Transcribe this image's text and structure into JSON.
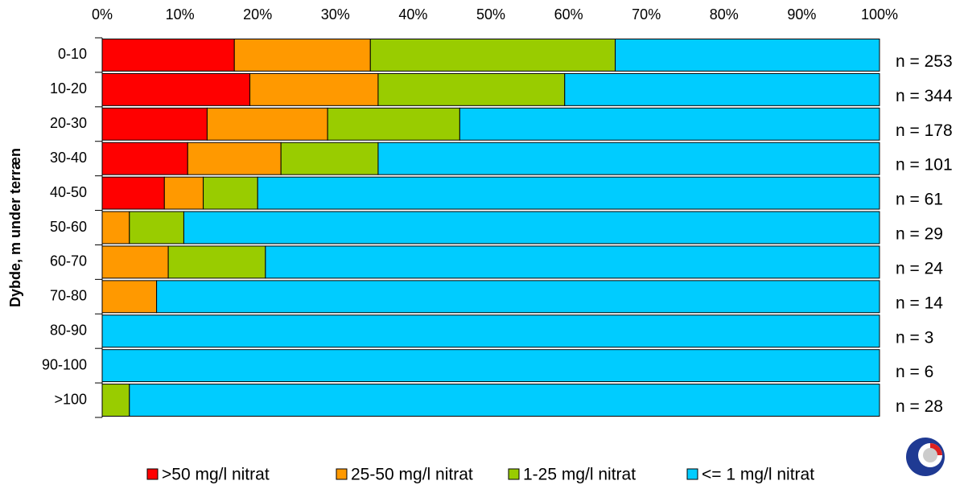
{
  "chart_data": {
    "type": "stacked_bar_horizontal_100",
    "y_axis_label": "Dybde, m under terræn",
    "categories": [
      "0-10",
      "10-20",
      "20-30",
      "30-40",
      "40-50",
      "50-60",
      "60-70",
      "70-80",
      "80-90",
      "90-100",
      ">100"
    ],
    "n_labels": [
      "n = 253",
      "n = 344",
      "n = 178",
      "n = 101",
      "n = 61",
      "n = 29",
      "n = 24",
      "n = 14",
      "n = 3",
      "n = 6",
      "n = 28"
    ],
    "series": [
      {
        "name": ">50 mg/l nitrat",
        "color": "#ff0000",
        "values": [
          17,
          19,
          13.5,
          11,
          8,
          0,
          0,
          0,
          0,
          0,
          0
        ]
      },
      {
        "name": "25-50 mg/l nitrat",
        "color": "#ff9900",
        "values": [
          17.5,
          16.5,
          15.5,
          12,
          5,
          3.5,
          8.5,
          7,
          0,
          0,
          0
        ]
      },
      {
        "name": "1-25 mg/l nitrat",
        "color": "#99cc00",
        "values": [
          31.5,
          24,
          17,
          12.5,
          7,
          7,
          12.5,
          0,
          0,
          0,
          3.5
        ]
      },
      {
        "name": "<= 1 mg/l nitrat",
        "color": "#00ccff",
        "values": [
          34,
          40.5,
          54,
          64.5,
          80,
          89.5,
          79,
          93,
          100,
          100,
          96.5
        ]
      }
    ],
    "xlim": [
      0,
      100
    ],
    "xticks": [
      {
        "value": 0,
        "label": "0%"
      },
      {
        "value": 10,
        "label": "10%"
      },
      {
        "value": 20,
        "label": "20%"
      },
      {
        "value": 30,
        "label": "30%"
      },
      {
        "value": 40,
        "label": "40%"
      },
      {
        "value": 50,
        "label": "50%"
      },
      {
        "value": 60,
        "label": "60%"
      },
      {
        "value": 70,
        "label": "70%"
      },
      {
        "value": 80,
        "label": "80%"
      },
      {
        "value": 90,
        "label": "90%"
      },
      {
        "value": 100,
        "label": "100%"
      }
    ]
  }
}
